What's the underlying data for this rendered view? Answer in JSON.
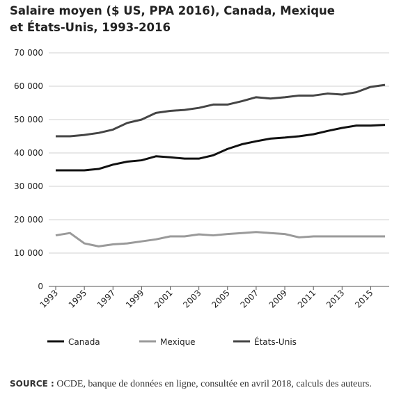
{
  "chart_data": {
    "type": "line",
    "title": "Salaire moyen ($ US, PPA 2016), Canada, Mexique et États-Unis, 1993-2016",
    "x": [
      1993,
      1994,
      1995,
      1996,
      1997,
      1998,
      1999,
      2000,
      2001,
      2002,
      2003,
      2004,
      2005,
      2006,
      2007,
      2008,
      2009,
      2010,
      2011,
      2012,
      2013,
      2014,
      2015,
      2016
    ],
    "xlim": [
      1993,
      2016
    ],
    "xticks": [
      1993,
      1995,
      1997,
      1999,
      2001,
      2003,
      2005,
      2007,
      2009,
      2011,
      2013,
      2015
    ],
    "ylim": [
      0,
      70000
    ],
    "yticks": [
      0,
      {
        "value": 10000,
        "label": "10 000"
      },
      {
        "value": 20000,
        "label": "20 000"
      },
      {
        "value": 30000,
        "label": "30 000"
      },
      {
        "value": 40000,
        "label": "40 000"
      },
      {
        "value": 50000,
        "label": "50 000"
      },
      {
        "value": 60000,
        "label": "60 000"
      },
      {
        "value": 70000,
        "label": "70 000"
      }
    ],
    "grid": true,
    "series": [
      {
        "name": "Canada",
        "color": "#111111",
        "values": [
          34800,
          34800,
          34800,
          35200,
          36500,
          37400,
          37800,
          39000,
          38700,
          38300,
          38300,
          39300,
          41200,
          42600,
          43500,
          44300,
          44600,
          45000,
          45600,
          46600,
          47500,
          48200,
          48200,
          48400
        ]
      },
      {
        "name": "Mexique",
        "color": "#9a9a9a",
        "values": [
          15300,
          16000,
          12900,
          12000,
          12600,
          12900,
          13500,
          14100,
          15000,
          15000,
          15600,
          15300,
          15700,
          16000,
          16300,
          16000,
          15700,
          14700,
          15000,
          15000,
          15000,
          15000,
          15000,
          15000
        ]
      },
      {
        "name": "États-Unis",
        "color": "#454545",
        "values": [
          45000,
          45000,
          45400,
          46000,
          47000,
          49000,
          50000,
          52000,
          52600,
          52900,
          53500,
          54500,
          54500,
          55500,
          56700,
          56300,
          56700,
          57200,
          57200,
          57800,
          57500,
          58200,
          59800,
          60400
        ]
      }
    ]
  },
  "source_label": "SOURCE :",
  "source": "OCDE, banque de données en ligne, consultée en avril 2018, calculs des auteurs."
}
